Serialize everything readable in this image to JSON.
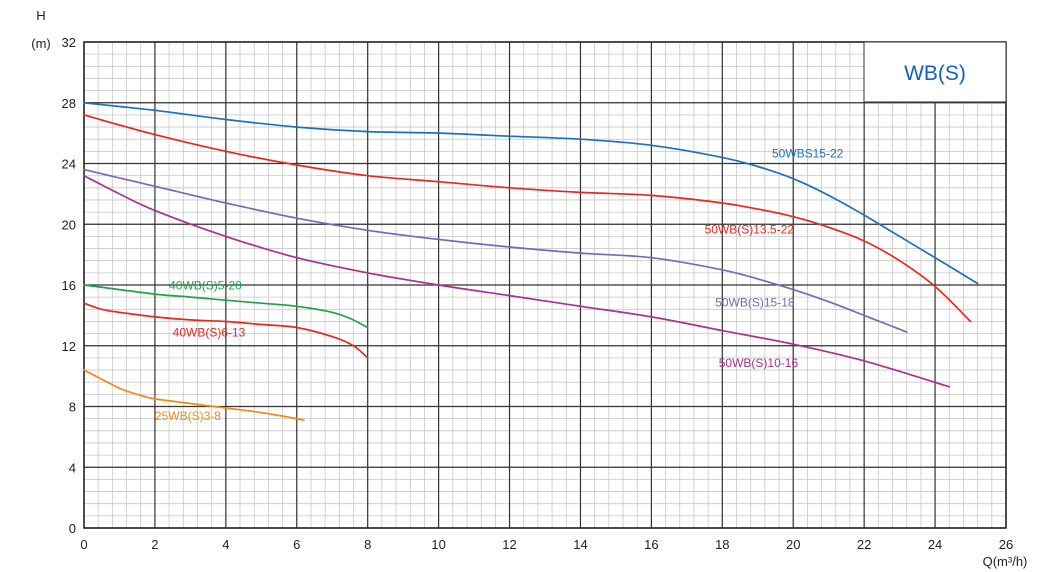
{
  "chart_data": {
    "type": "line",
    "title": "WB(S)",
    "ylabel_top": "H",
    "ylabel_unit": "(m)",
    "xlabel": "Q(m³/h)",
    "xlim": [
      0,
      26
    ],
    "ylim": [
      0,
      32
    ],
    "x_ticks": [
      "0",
      "2",
      "4",
      "6",
      "8",
      "10",
      "12",
      "14",
      "16",
      "18",
      "20",
      "22",
      "24",
      "26"
    ],
    "y_ticks": [
      "0",
      "4",
      "8",
      "12",
      "16",
      "20",
      "24",
      "28",
      "32"
    ],
    "major_grid": {
      "x_step": 2,
      "y_step": 4
    },
    "minor_grid": {
      "x_step": 0.4,
      "y_step": 0.8
    },
    "colors": {
      "title": "#1560bd",
      "grid_major": "#333333",
      "grid_minor": "#c8c8c8"
    },
    "series": [
      {
        "name": "50WBS15-22",
        "color": "#1f6fc0",
        "x": [
          0,
          2,
          4,
          6,
          8,
          10,
          12,
          14,
          16,
          18,
          19,
          20,
          21,
          22,
          23,
          24,
          25.2
        ],
        "y": [
          28,
          27.5,
          26.9,
          26.4,
          26.1,
          26.0,
          25.8,
          25.6,
          25.2,
          24.4,
          23.8,
          23.0,
          21.9,
          20.6,
          19.2,
          17.8,
          16.1
        ]
      },
      {
        "name": "50WB(S)13.5-22",
        "color": "#e8281e",
        "x": [
          0,
          2,
          4,
          6,
          8,
          10,
          12,
          14,
          16,
          18,
          19,
          20,
          21,
          22,
          23,
          24,
          25
        ],
        "y": [
          27.2,
          25.9,
          24.8,
          23.9,
          23.2,
          22.8,
          22.4,
          22.1,
          21.9,
          21.4,
          21.0,
          20.5,
          19.8,
          18.9,
          17.6,
          15.9,
          13.6
        ]
      },
      {
        "name": "50WB(S)15-18",
        "color": "#7b68b6",
        "x": [
          0,
          2,
          4,
          6,
          8,
          10,
          12,
          14,
          16,
          18,
          19,
          20,
          21,
          22,
          23.2
        ],
        "y": [
          23.6,
          22.5,
          21.4,
          20.4,
          19.6,
          19.0,
          18.5,
          18.1,
          17.8,
          17.0,
          16.4,
          15.7,
          14.9,
          14.0,
          12.9
        ]
      },
      {
        "name": "50WB(S)10-16",
        "color": "#a8338f",
        "x": [
          0,
          1,
          2,
          4,
          6,
          8,
          10,
          12,
          14,
          16,
          18,
          20,
          22,
          24.4
        ],
        "y": [
          23.2,
          22.0,
          20.9,
          19.2,
          17.8,
          16.8,
          16.0,
          15.3,
          14.6,
          13.9,
          13.0,
          12.1,
          11.0,
          9.3
        ]
      },
      {
        "name": "40WB(S)5-20",
        "color": "#1ea34a",
        "x": [
          0,
          1,
          2,
          3,
          4,
          5,
          6,
          7,
          7.5,
          8
        ],
        "y": [
          16.0,
          15.7,
          15.4,
          15.2,
          15.0,
          14.8,
          14.6,
          14.2,
          13.8,
          13.2
        ]
      },
      {
        "name": "40WB(S)6-13",
        "color": "#e8281e",
        "x": [
          0,
          0.5,
          1,
          2,
          3,
          4,
          5,
          6,
          7,
          7.6,
          8
        ],
        "y": [
          14.8,
          14.4,
          14.2,
          13.9,
          13.7,
          13.6,
          13.4,
          13.2,
          12.6,
          12.0,
          11.2
        ]
      },
      {
        "name": "25WB(S)3-8",
        "color": "#f28b1a",
        "x": [
          0,
          0.5,
          1,
          1.5,
          2,
          3,
          4,
          5,
          6,
          6.2
        ],
        "y": [
          10.4,
          9.8,
          9.2,
          8.8,
          8.5,
          8.2,
          7.9,
          7.6,
          7.2,
          7.1
        ]
      }
    ],
    "labels": [
      {
        "text": "50WBS15-22",
        "series": "50WBS15-22"
      },
      {
        "text": "50WB(S)13.5-22",
        "series": "50WB(S)13.5-22"
      },
      {
        "text": "50WB(S)15-18",
        "series": "50WB(S)15-18"
      },
      {
        "text": "50WB(S)10-16",
        "series": "50WB(S)10-16"
      },
      {
        "text": "40WB(S)5-20",
        "series": "40WB(S)5-20"
      },
      {
        "text": "40WB(S)6-13",
        "series": "40WB(S)6-13"
      },
      {
        "text": "25WB(S)3-8",
        "series": "25WB(S)3-8"
      }
    ]
  }
}
